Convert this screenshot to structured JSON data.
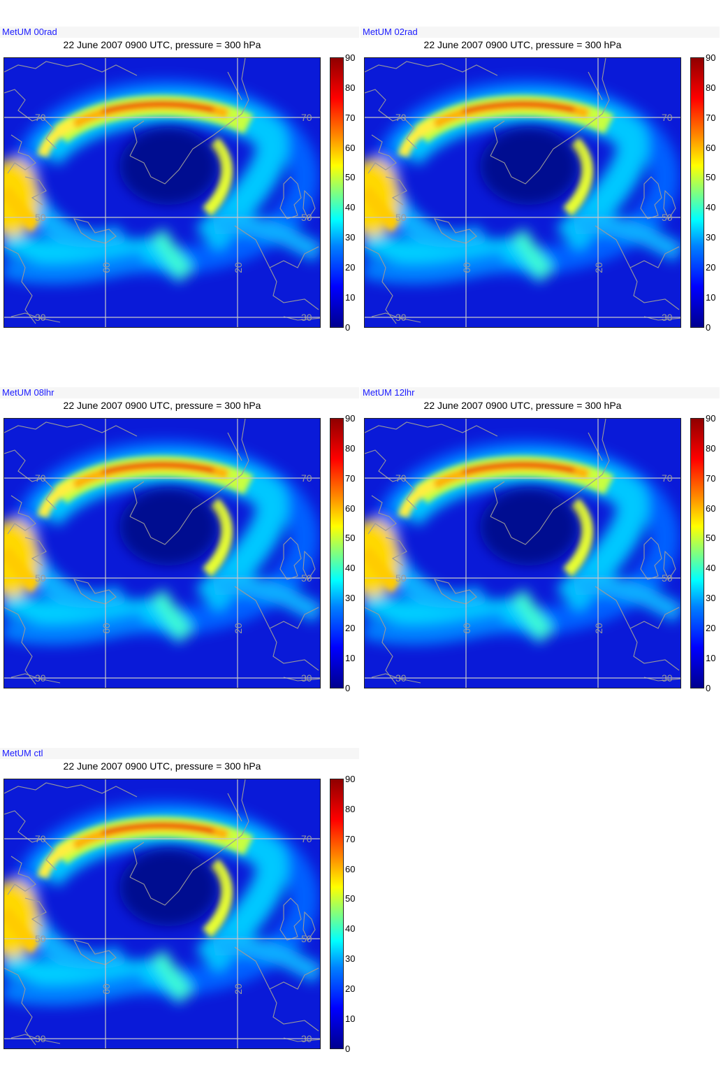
{
  "colorbar": {
    "ticks": [
      "90",
      "80",
      "70",
      "60",
      "50",
      "40",
      "30",
      "20",
      "10",
      "0"
    ],
    "colors": [
      "#00008f",
      "#0000ff",
      "#0080ff",
      "#00ffff",
      "#80ff80",
      "#ffff00",
      "#ff8000",
      "#ff0000",
      "#8f0000"
    ]
  },
  "map_labels": {
    "lat": [
      "70",
      "50",
      "30"
    ],
    "lon": [
      "60",
      "20"
    ]
  },
  "panels": [
    {
      "label": "MetUM 00rad",
      "title": "22 June 2007 0900 UTC, pressure = 300 hPa"
    },
    {
      "label": "MetUM 02rad",
      "title": "22 June 2007 0900 UTC, pressure = 300 hPa"
    },
    {
      "label": "MetUM 08lhr",
      "title": "22 June 2007 0900 UTC, pressure = 300 hPa"
    },
    {
      "label": "MetUM 12lhr",
      "title": "22 June 2007 0900 UTC, pressure = 300 hPa"
    },
    {
      "label": "MetUM ctl",
      "title": "22 June 2007 0900 UTC, pressure = 300 hPa"
    }
  ],
  "chart_data": [
    {
      "type": "heatmap",
      "title": "22 June 2007 0900 UTC, pressure = 300 hPa",
      "colorbar_range": [
        0,
        90
      ]
    },
    {
      "type": "heatmap",
      "title": "22 June 2007 0900 UTC, pressure = 300 hPa",
      "colorbar_range": [
        0,
        90
      ]
    },
    {
      "type": "heatmap",
      "title": "22 June 2007 0900 UTC, pressure = 300 hPa",
      "colorbar_range": [
        0,
        90
      ]
    },
    {
      "type": "heatmap",
      "title": "22 June 2007 0900 UTC, pressure = 300 hPa",
      "colorbar_range": [
        0,
        90
      ]
    },
    {
      "type": "heatmap",
      "title": "22 June 2007 0900 UTC, pressure = 300 hPa",
      "colorbar_range": [
        0,
        90
      ]
    }
  ]
}
